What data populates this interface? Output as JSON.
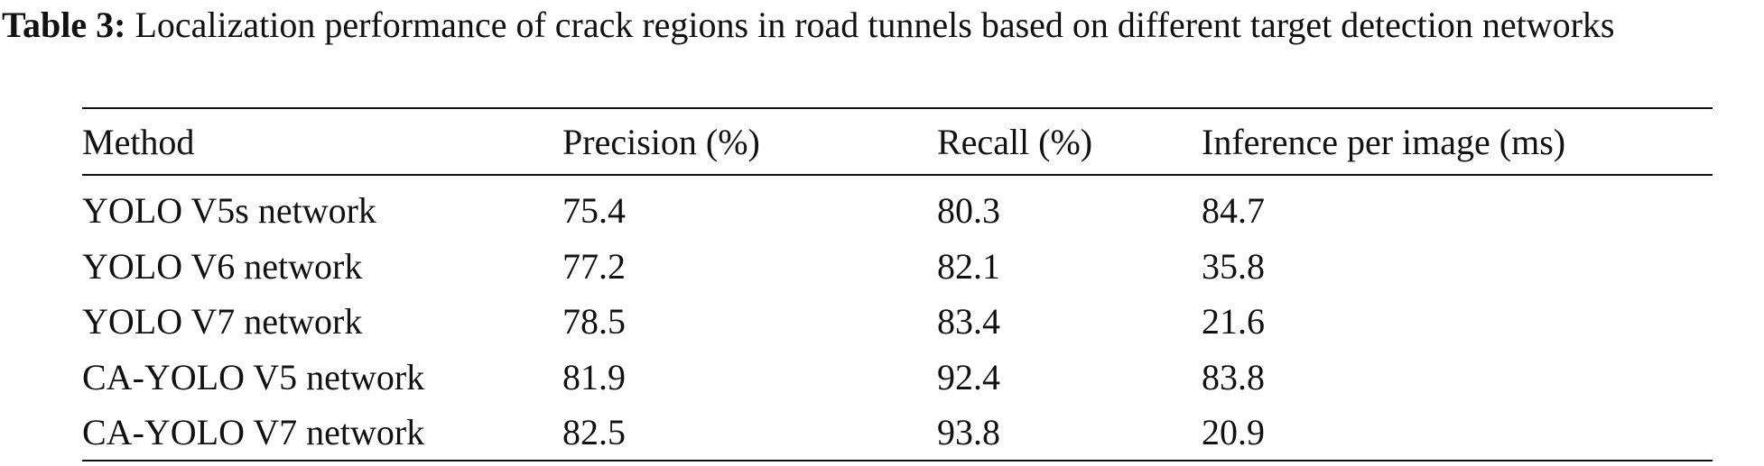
{
  "caption": {
    "label": "Table 3:",
    "text": "Localization performance of crack regions in road tunnels based on different target detection networks"
  },
  "table": {
    "header": [
      "Method",
      "Precision (%)",
      "Recall (%)",
      "Inference per image (ms)"
    ],
    "rows": [
      [
        "YOLO V5s network",
        75.4,
        80.3,
        84.7
      ],
      [
        "YOLO V6 network",
        77.2,
        82.1,
        35.8
      ],
      [
        "YOLO V7 network",
        78.5,
        83.4,
        21.6
      ],
      [
        "CA-YOLO V5 network",
        81.9,
        92.4,
        83.8
      ],
      [
        "CA-YOLO V7 network",
        82.5,
        93.8,
        20.9
      ]
    ]
  }
}
